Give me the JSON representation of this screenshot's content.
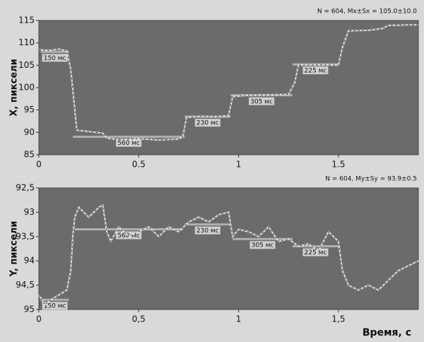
{
  "chart_data": [
    {
      "type": "line",
      "ylabel": "X, пиксели",
      "annotation": "N = 604, Mx±Sx = 105.0±10.0",
      "color": "#e8e8e8",
      "xlim": [
        0,
        1.9
      ],
      "xticks": [
        0,
        0.5,
        1,
        1.5
      ],
      "ylim": [
        85,
        115
      ],
      "yticks": [
        85,
        90,
        95,
        100,
        105,
        110,
        115
      ],
      "x": [
        0,
        0.05,
        0.1,
        0.14,
        0.16,
        0.18,
        0.19,
        0.25,
        0.32,
        0.34,
        0.4,
        0.5,
        0.6,
        0.7,
        0.72,
        0.74,
        0.8,
        0.9,
        0.95,
        0.97,
        1.05,
        1.15,
        1.25,
        1.28,
        1.3,
        1.4,
        1.5,
        1.52,
        1.55,
        1.65,
        1.72,
        1.75,
        1.85,
        1.9
      ],
      "values": [
        108.5,
        108.3,
        108.6,
        108.2,
        104,
        95,
        90.5,
        90.2,
        89.8,
        88.7,
        88.4,
        88.6,
        88.3,
        88.5,
        89,
        93.3,
        93.6,
        93.5,
        93.8,
        98,
        98.3,
        98.4,
        98.5,
        101,
        105,
        105.1,
        105,
        109,
        112.7,
        112.8,
        113.2,
        113.9,
        114,
        114
      ],
      "fixations": [
        {
          "label": "150 мс",
          "x": [
            0.01,
            0.15
          ],
          "y": 108
        },
        {
          "label": "560 мс",
          "x": [
            0.17,
            0.73
          ],
          "y": 89
        },
        {
          "label": "230 мс",
          "x": [
            0.73,
            0.96
          ],
          "y": 93.5
        },
        {
          "label": "305 мс",
          "x": [
            0.96,
            1.27
          ],
          "y": 98.3
        },
        {
          "label": "225 мс",
          "x": [
            1.27,
            1.5
          ],
          "y": 105.2
        }
      ]
    },
    {
      "type": "line",
      "ylabel": "Y, пиксели",
      "xlabel": "Время, с",
      "annotation": "N = 604, My±Sy = 93.9±0.5",
      "color": "#e8e8e8",
      "xlim": [
        0,
        1.9
      ],
      "xticks": [
        0,
        {
          "value": 0.5,
          "label": "0,5"
        },
        1,
        {
          "value": 1.5,
          "label": "1,5"
        }
      ],
      "ylim": [
        95,
        92.5
      ],
      "yticks": [
        {
          "value": 92.5,
          "label": "92,5"
        },
        93,
        {
          "value": 93.5,
          "label": "93,5"
        },
        94,
        {
          "value": 94.5,
          "label": "94,5"
        },
        95
      ],
      "x": [
        0,
        0.03,
        0.06,
        0.1,
        0.14,
        0.16,
        0.17,
        0.18,
        0.2,
        0.25,
        0.3,
        0.32,
        0.34,
        0.36,
        0.4,
        0.45,
        0.5,
        0.55,
        0.6,
        0.65,
        0.7,
        0.75,
        0.8,
        0.85,
        0.9,
        0.95,
        0.97,
        1.0,
        1.05,
        1.1,
        1.15,
        1.2,
        1.25,
        1.3,
        1.35,
        1.4,
        1.45,
        1.5,
        1.52,
        1.55,
        1.6,
        1.65,
        1.7,
        1.75,
        1.8,
        1.85,
        1.9
      ],
      "values": [
        94.7,
        94.9,
        94.8,
        94.7,
        94.6,
        94.2,
        93.5,
        93.1,
        92.9,
        93.1,
        92.9,
        92.85,
        93.4,
        93.6,
        93.3,
        93.5,
        93.4,
        93.3,
        93.5,
        93.3,
        93.4,
        93.2,
        93.1,
        93.2,
        93.05,
        93.0,
        93.5,
        93.35,
        93.4,
        93.5,
        93.3,
        93.6,
        93.55,
        93.7,
        93.65,
        93.8,
        93.4,
        93.6,
        94.2,
        94.5,
        94.6,
        94.5,
        94.6,
        94.4,
        94.2,
        94.1,
        94.0
      ],
      "fixations": [
        {
          "label": "150 мс",
          "x": [
            0.01,
            0.15
          ],
          "y": 94.8
        },
        {
          "label": "560 мс",
          "x": [
            0.18,
            0.72
          ],
          "y": 93.35
        },
        {
          "label": "230 мс",
          "x": [
            0.73,
            0.96
          ],
          "y": 93.25
        },
        {
          "label": "305 мс",
          "x": [
            0.97,
            1.27
          ],
          "y": 93.55
        },
        {
          "label": "225 мс",
          "x": [
            1.27,
            1.5
          ],
          "y": 93.7
        }
      ]
    }
  ]
}
